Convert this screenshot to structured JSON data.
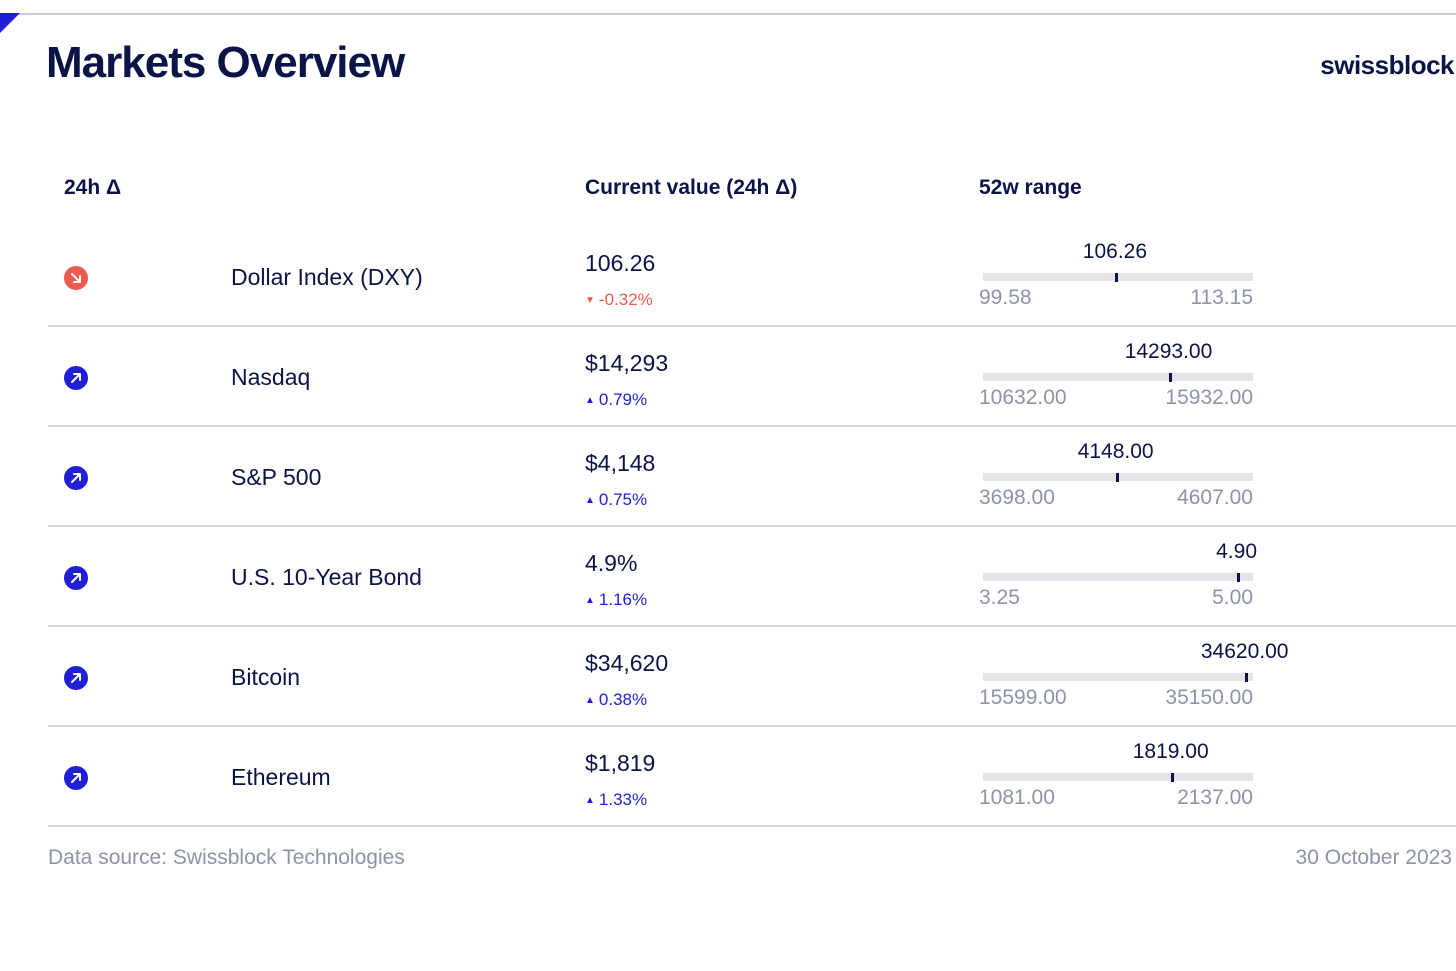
{
  "header": {
    "title": "Markets Overview",
    "logo": "swissblock"
  },
  "columns": {
    "delta": "24h Δ",
    "current": "Current value (24h Δ)",
    "range": "52w range"
  },
  "colors": {
    "down": "#ee5a52",
    "up": "#1f1fd6",
    "brand": "#0a1446"
  },
  "rows": [
    {
      "name": "Dollar Index (DXY)",
      "value": "106.26",
      "change": "-0.32%",
      "direction": "down",
      "icon": "arrow-down-right-icon",
      "range": {
        "low": "99.58",
        "high": "113.15",
        "current": "106.26",
        "low_num": 99.58,
        "high_num": 113.15,
        "current_num": 106.26
      }
    },
    {
      "name": "Nasdaq",
      "value": "$14,293",
      "change": "0.79%",
      "direction": "up",
      "icon": "arrow-up-right-icon",
      "range": {
        "low": "10632.00",
        "high": "15932.00",
        "current": "14293.00",
        "low_num": 10632,
        "high_num": 15932,
        "current_num": 14293
      }
    },
    {
      "name": "S&P 500",
      "value": "$4,148",
      "change": "0.75%",
      "direction": "up",
      "icon": "arrow-up-right-icon",
      "range": {
        "low": "3698.00",
        "high": "4607.00",
        "current": "4148.00",
        "low_num": 3698,
        "high_num": 4607,
        "current_num": 4148
      }
    },
    {
      "name": "U.S. 10-Year Bond",
      "value": "4.9%",
      "change": "1.16%",
      "direction": "up",
      "icon": "arrow-up-right-icon",
      "range": {
        "low": "3.25",
        "high": "5.00",
        "current": "4.90",
        "low_num": 3.25,
        "high_num": 5.0,
        "current_num": 4.9
      }
    },
    {
      "name": "Bitcoin",
      "value": "$34,620",
      "change": "0.38%",
      "direction": "up",
      "icon": "arrow-up-right-icon",
      "range": {
        "low": "15599.00",
        "high": "35150.00",
        "current": "34620.00",
        "low_num": 15599,
        "high_num": 35150,
        "current_num": 34620
      }
    },
    {
      "name": "Ethereum",
      "value": "$1,819",
      "change": "1.33%",
      "direction": "up",
      "icon": "arrow-up-right-icon",
      "range": {
        "low": "1081.00",
        "high": "2137.00",
        "current": "1819.00",
        "low_num": 1081,
        "high_num": 2137,
        "current_num": 1819
      }
    }
  ],
  "footer": {
    "source": "Data source: Swissblock Technologies",
    "date": "30 October 2023"
  }
}
